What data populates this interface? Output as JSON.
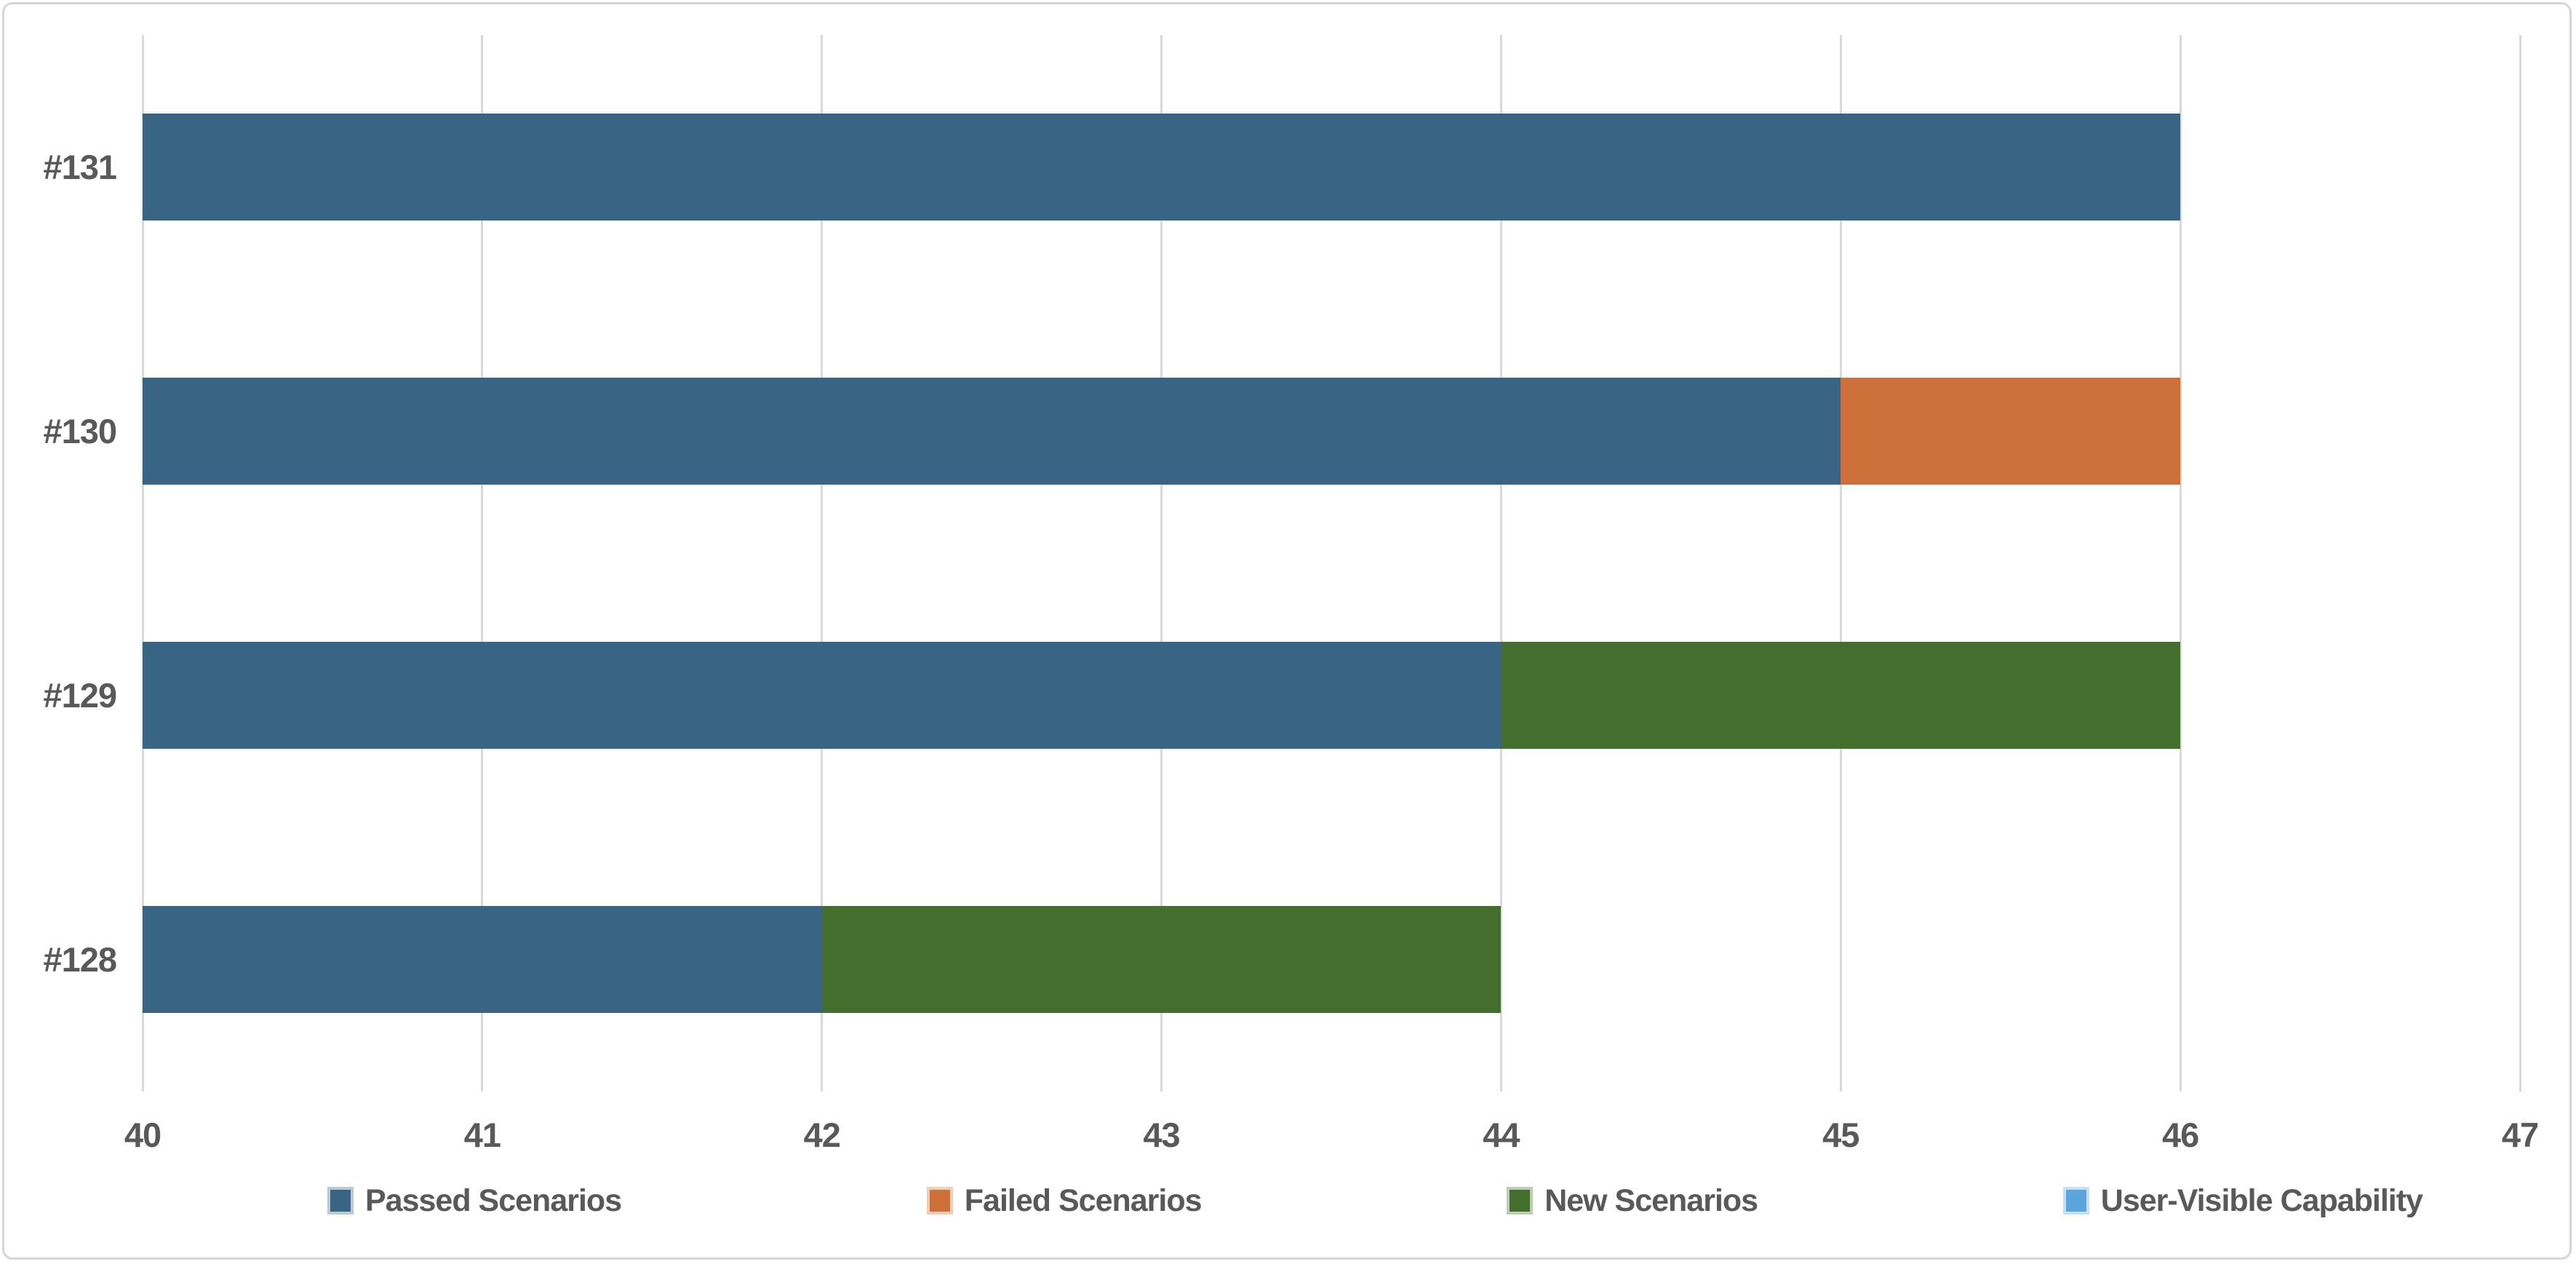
{
  "chart_data": {
    "type": "bar",
    "orientation": "horizontal",
    "stacked": true,
    "title": "",
    "xlabel": "",
    "ylabel": "",
    "categories": [
      "#131",
      "#130",
      "#129",
      "#128"
    ],
    "series": [
      {
        "name": "Passed Scenarios",
        "color": "#3A6484",
        "values": [
          46,
          45,
          44,
          42
        ]
      },
      {
        "name": "Failed Scenarios",
        "color": "#CE7039",
        "values": [
          0,
          1,
          0,
          0
        ]
      },
      {
        "name": "New Scenarios",
        "color": "#446E2D",
        "values": [
          0,
          0,
          2,
          2
        ]
      },
      {
        "name": "User-Visible Capability",
        "color": "#5CA4DC",
        "values": [
          0,
          0,
          0,
          0
        ]
      }
    ],
    "xlim": [
      40,
      47
    ],
    "xticks": [
      "40",
      "41",
      "42",
      "43",
      "44",
      "45",
      "46",
      "47"
    ],
    "grid": true,
    "legend_position": "bottom"
  },
  "colors": {
    "gridline": "#D9D9D9",
    "axis_text": "#595959",
    "frame_border": "#D6D6D6",
    "background": "#FFFFFF"
  }
}
